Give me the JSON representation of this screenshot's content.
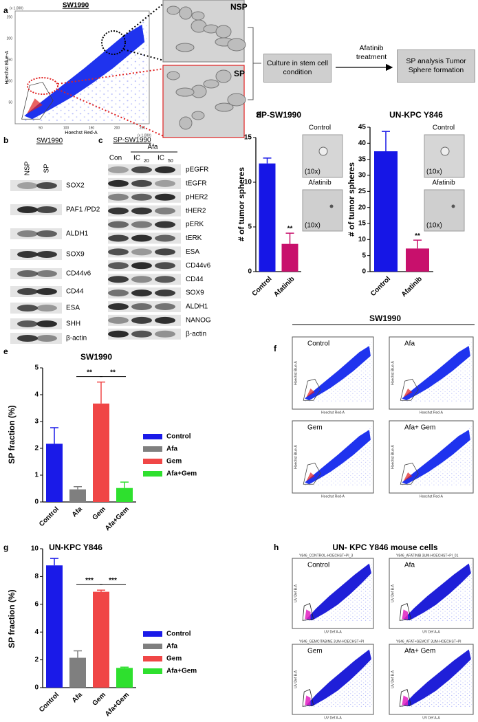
{
  "chart_data": [
    {
      "type": "bar",
      "title": "SP-SW1990",
      "y_label": "# of tumor spheres",
      "categories": [
        "Control",
        "Afatinib"
      ],
      "values": [
        12.1,
        3.1
      ],
      "errors": [
        0.6,
        1.2
      ],
      "colors": [
        "#1616e6",
        "#c8106c"
      ],
      "ylim": [
        0,
        15
      ],
      "yticks": [
        0,
        5,
        10,
        15
      ],
      "annotations": [
        "**"
      ]
    },
    {
      "type": "bar",
      "title": "UN-KPC Y846",
      "y_label": "# of tumor spheres",
      "categories": [
        "Control",
        "Afatinib"
      ],
      "values": [
        37.5,
        7.2
      ],
      "errors": [
        6.2,
        2.6
      ],
      "colors": [
        "#1616e6",
        "#c8106c"
      ],
      "ylim": [
        0,
        45
      ],
      "yticks": [
        0,
        5,
        10,
        15,
        20,
        25,
        30,
        35,
        40,
        45
      ],
      "annotations": [
        "**"
      ]
    },
    {
      "type": "bar",
      "title": "SW1990",
      "y_label": "SP fraction (%)",
      "categories": [
        "Control",
        "Afa",
        "Gem",
        "Afa+Gem"
      ],
      "values": [
        2.17,
        0.47,
        3.67,
        0.52
      ],
      "errors": [
        0.6,
        0.1,
        0.8,
        0.22
      ],
      "colors": [
        "#1a1ae8",
        "#7f7f7f",
        "#f04646",
        "#2ee02e"
      ],
      "ylim": [
        0,
        5
      ],
      "yticks": [
        0,
        1,
        2,
        3,
        4,
        5
      ],
      "legend": "right",
      "annotations": [
        "**",
        "**"
      ]
    },
    {
      "type": "bar",
      "title": "UN-KPC Y846",
      "y_label": "SP fraction (%)",
      "categories": [
        "Control",
        "Afa",
        "Gem",
        "Afa+Gem"
      ],
      "values": [
        8.8,
        2.15,
        6.9,
        1.42
      ],
      "errors": [
        0.5,
        0.5,
        0.12,
        0.05
      ],
      "colors": [
        "#1a1ae8",
        "#7f7f7f",
        "#f04646",
        "#2ee02e"
      ],
      "ylim": [
        0,
        10
      ],
      "yticks": [
        0,
        2,
        4,
        6,
        8,
        10
      ],
      "legend": "right",
      "annotations": [
        "***",
        "***"
      ]
    }
  ],
  "panel_labels": [
    "a",
    "b",
    "c",
    "d",
    "e",
    "f",
    "g",
    "h"
  ],
  "panel_a": {
    "title": "SW1990",
    "y_label": "Hoechst Blue-A",
    "x_label": "Hoechst Red-A",
    "scale_note": "(x 1,000)",
    "ticks": [
      50,
      100,
      150,
      200,
      250
    ],
    "images": [
      "NSP",
      "SP"
    ],
    "flow": [
      "Culture in stem cell condition",
      "Afatinib treatment",
      "SP analysis Tumor Sphere formation"
    ]
  },
  "panel_b": {
    "title": "SW1990",
    "lanes": [
      "NSP",
      "SP"
    ],
    "rows": [
      "SOX2",
      "PAF1 /PD2",
      "ALDH1",
      "SOX9",
      "CD44v6",
      "CD44",
      "ESA",
      "SHH",
      "β-actin"
    ]
  },
  "panel_c": {
    "title": "SP-SW1990",
    "group": "Afa",
    "lanes": [
      {
        "text": "Con"
      },
      {
        "text": "IC",
        "sub": "20"
      },
      {
        "text": "IC",
        "sub": "50"
      }
    ],
    "rows": [
      "pEGFR",
      "tEGFR",
      "pHER2",
      "tHER2",
      "pERK",
      "tERK",
      "ESA",
      "CD44v6",
      "CD44",
      "SOX9",
      "ALDH1",
      "NANOG",
      "β-actin"
    ]
  },
  "panel_d": {
    "image_labels": [
      "Control",
      "Afatinib"
    ],
    "magnification": "(10x)"
  },
  "panel_f": {
    "title": "SW1990",
    "labels": [
      "Control",
      "Afa",
      "Gem",
      "Afa+ Gem"
    ],
    "y_label": "Hoechst Blue-A",
    "x_label": "Hoechst Red-A"
  },
  "panel_h": {
    "title": "UN- KPC Y846 mouse cells",
    "labels": [
      "Control",
      "Afa",
      "Gem",
      "Afa+ Gem"
    ],
    "headers": [
      "Y846_CONTROL-HOECHST+PI_3",
      "Y846_AFATINIB 3UM-HOECHST+PI_01",
      "Y846_GEMCITABINE 3UM-HOECHST+PI",
      "Y846_AFAT+GEMCIT 3UM-HOECHST+PI"
    ],
    "y_label": "UV Def B-A",
    "x_label": "UV Def A-A"
  }
}
